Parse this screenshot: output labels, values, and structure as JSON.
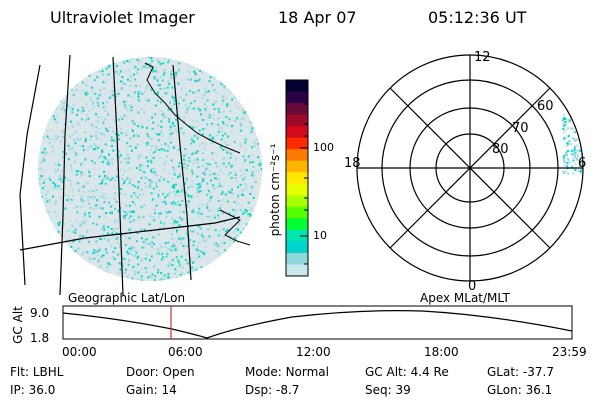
{
  "header": {
    "title": "Ultraviolet Imager",
    "date": "18 Apr 07",
    "time": "05:12:36 UT"
  },
  "colorbar": {
    "unit_label": "photon cm⁻²s⁻¹",
    "ticks": [
      "100",
      "10"
    ],
    "colors": [
      "#000033",
      "#2a0046",
      "#6a0a3a",
      "#a00a2a",
      "#d40a1a",
      "#ff2a00",
      "#ff7a00",
      "#ffb400",
      "#ffe600",
      "#e9ff00",
      "#a8ff00",
      "#55ff00",
      "#00ff33",
      "#00e6b0",
      "#00d4cc",
      "#8ed8dc",
      "#c7e7ea"
    ]
  },
  "polar": {
    "labels": {
      "top": "12",
      "left": "18",
      "right": "6",
      "bottom": "0"
    },
    "lat_labels": [
      "60",
      "70",
      "80"
    ]
  },
  "projection_labels": {
    "left": "Geographic Lat/Lon",
    "right": "Apex MLat/MLT"
  },
  "altitude_strip": {
    "ylabel": "GC Alt",
    "yticks": [
      "9.0",
      "1.8"
    ],
    "xticks": [
      "00:00",
      "06:00",
      "12:00",
      "18:00",
      "23:59"
    ],
    "current_marker_color": "#cc3333"
  },
  "status": {
    "row1": [
      {
        "label": "Flt:",
        "value": "LBHL"
      },
      {
        "label": "Door:",
        "value": "Open"
      },
      {
        "label": "Mode:",
        "value": "Normal"
      },
      {
        "label": "GC Alt:",
        "value": "4.4 Re"
      },
      {
        "label": "GLat:",
        "value": "-37.7"
      }
    ],
    "row2": [
      {
        "label": "IP:",
        "value": "36.0"
      },
      {
        "label": "Gain:",
        "value": "14"
      },
      {
        "label": "Dsp:",
        "value": "-8.7"
      },
      {
        "label": "Seq:",
        "value": "39"
      },
      {
        "label": "GLon:",
        "value": "36.1"
      }
    ]
  }
}
